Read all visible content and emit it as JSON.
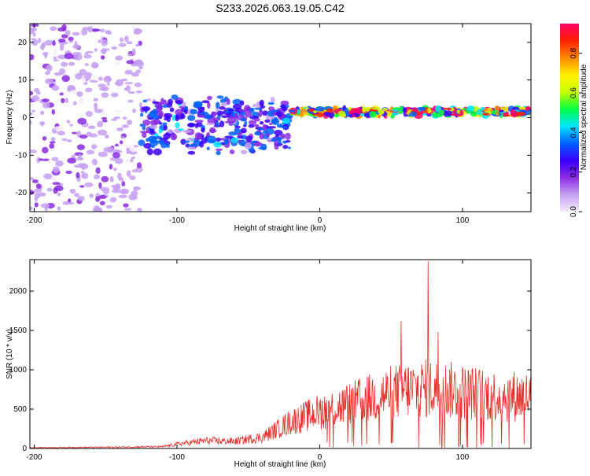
{
  "title": "S233.2026.063.19.05.C42",
  "chart_data": [
    {
      "type": "heatmap",
      "xlabel": "Height of straight line (km)",
      "ylabel": "Frequency (Hz)",
      "xlim": [
        -203,
        148
      ],
      "ylim": [
        -25,
        25
      ],
      "x_ticks": [
        -200,
        -100,
        0,
        100
      ],
      "y_ticks": [
        -20,
        -10,
        0,
        10,
        20
      ],
      "colorbar": {
        "label": "Normalized spectral amplitude",
        "range": [
          0,
          0.95
        ],
        "ticks": [
          "0.0",
          "0.2",
          "0.4",
          "0.6",
          "0.8"
        ],
        "colors": [
          "#f4ecfb",
          "#c6a0f2",
          "#8a2be2",
          "#3a00ff",
          "#0060ff",
          "#00e5ff",
          "#00ff40",
          "#c8ff00",
          "#ffee00",
          "#ff8800",
          "#ff2000",
          "#ff0066"
        ]
      },
      "features": [
        {
          "name": "noise",
          "x_range": [
            -203,
            -125
          ],
          "freq_range": [
            -25,
            25
          ],
          "amplitude": 0.12
        },
        {
          "name": "transition",
          "x_range": [
            -125,
            -20
          ],
          "freq_center": 0,
          "freq_spread": 6,
          "amplitude": 0.25
        },
        {
          "name": "signal",
          "x_range": [
            -20,
            148
          ],
          "freq_center": 1.5,
          "freq_spread": 1,
          "amplitude": 0.9
        }
      ]
    },
    {
      "type": "line",
      "xlabel": "Height of straight line (km)",
      "ylabel": "SNR (10 * v/v)",
      "xlim": [
        -203,
        148
      ],
      "ylim": [
        0,
        2400
      ],
      "x_ticks": [
        -200,
        -100,
        0,
        100
      ],
      "y_ticks": [
        0,
        500,
        1000,
        1500,
        2000
      ],
      "color": "#e8302a",
      "envelope": {
        "x": [
          -203,
          -150,
          -110,
          -100,
          -80,
          -60,
          -40,
          -20,
          0,
          20,
          40,
          60,
          80,
          100,
          120,
          148
        ],
        "y": [
          12,
          18,
          25,
          60,
          110,
          100,
          160,
          380,
          520,
          620,
          740,
          830,
          850,
          800,
          750,
          730
        ]
      },
      "peaks": [
        {
          "x": 57,
          "y": 1620
        },
        {
          "x": 76,
          "y": 2380
        },
        {
          "x": 83,
          "y": 1480
        }
      ]
    }
  ]
}
